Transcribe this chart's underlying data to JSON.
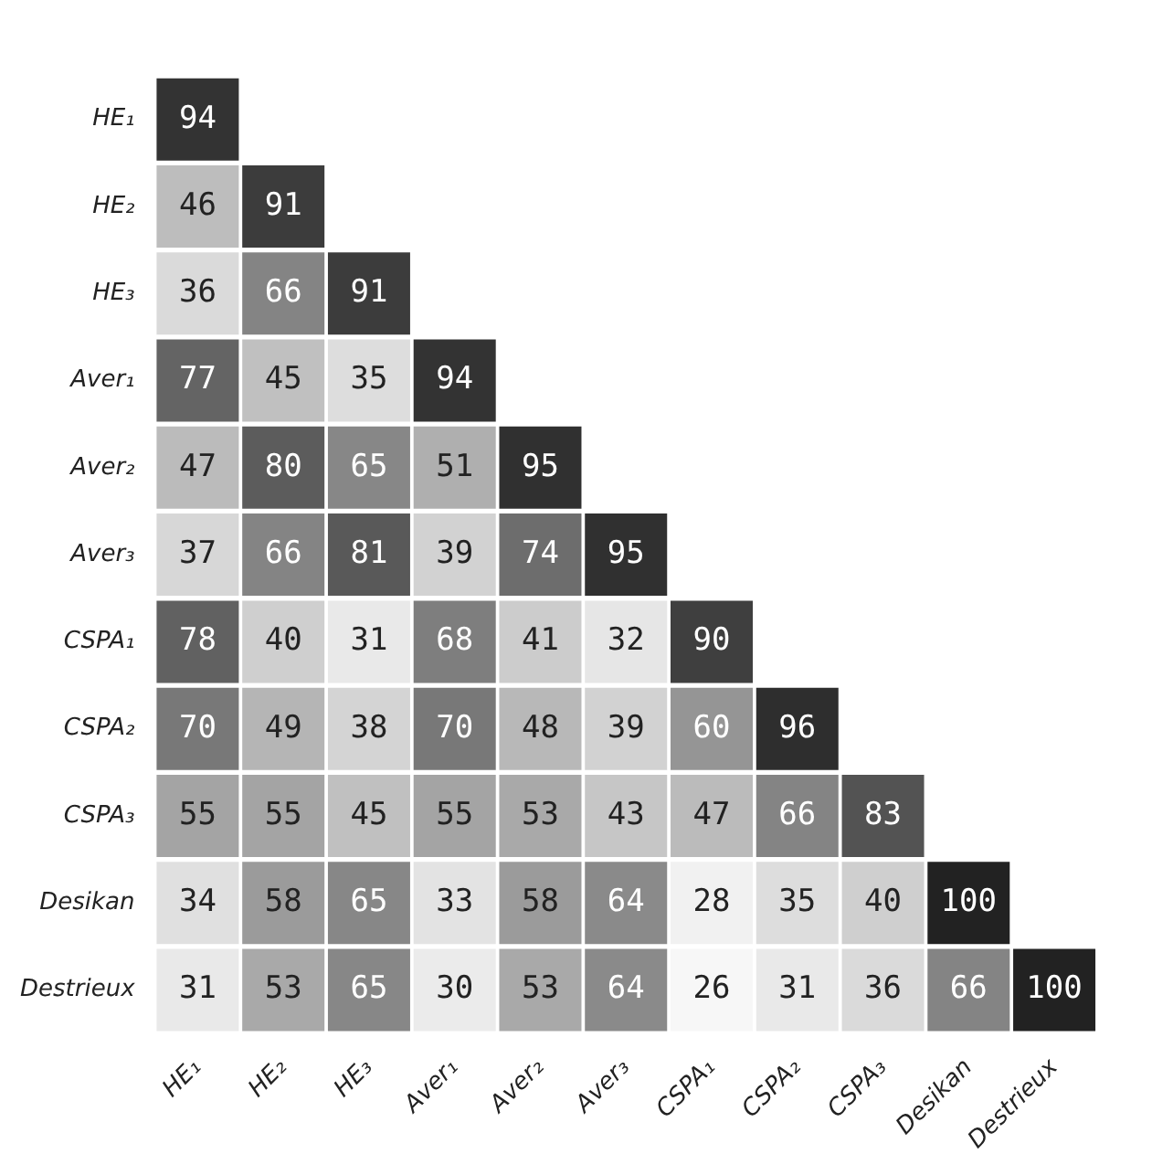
{
  "chart_data": {
    "type": "heatmap",
    "data_labels": true,
    "categories": [
      "HE₁",
      "HE₂",
      "HE₃",
      "Aver₁",
      "Aver₂",
      "Aver₃",
      "CSPA₁",
      "CSPA₂",
      "CSPA₃",
      "Desikan",
      "Destrieux"
    ],
    "y_categories": [
      "HE₁",
      "HE₂",
      "HE₃",
      "Aver₁",
      "Aver₂",
      "Aver₃",
      "CSPA₁",
      "CSPA₂",
      "CSPA₃",
      "Desikan",
      "Destrieux"
    ],
    "cells": [
      [
        94,
        null,
        null,
        null,
        null,
        null,
        null,
        null,
        null,
        null,
        null
      ],
      [
        46,
        91,
        null,
        null,
        null,
        null,
        null,
        null,
        null,
        null,
        null
      ],
      [
        36,
        66,
        91,
        null,
        null,
        null,
        null,
        null,
        null,
        null,
        null
      ],
      [
        77,
        45,
        35,
        94,
        null,
        null,
        null,
        null,
        null,
        null,
        null
      ],
      [
        47,
        80,
        65,
        51,
        95,
        null,
        null,
        null,
        null,
        null,
        null
      ],
      [
        37,
        66,
        81,
        39,
        74,
        95,
        null,
        null,
        null,
        null,
        null
      ],
      [
        78,
        40,
        31,
        68,
        41,
        32,
        90,
        null,
        null,
        null,
        null
      ],
      [
        70,
        49,
        38,
        70,
        48,
        39,
        60,
        96,
        null,
        null,
        null
      ],
      [
        55,
        55,
        45,
        55,
        53,
        43,
        47,
        66,
        83,
        null,
        null
      ],
      [
        34,
        58,
        65,
        33,
        58,
        64,
        28,
        35,
        40,
        100,
        null
      ],
      [
        31,
        53,
        65,
        30,
        53,
        64,
        26,
        31,
        36,
        66,
        100
      ]
    ]
  }
}
